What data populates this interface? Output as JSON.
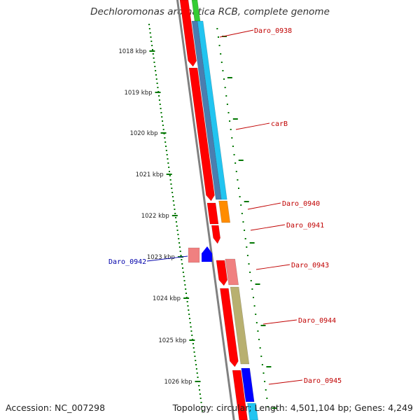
{
  "title": "Dechloromonas aromatica RCB, complete genome",
  "footer": {
    "accession": "Accession: NC_007298",
    "summary": "Topology: circular; Length: 4,501,104 bp; Genes: 4,249"
  },
  "kbp_labels": [
    "1018 kbp",
    "1019 kbp",
    "1020 kbp",
    "1021 kbp",
    "1022 kbp",
    "1023 kbp",
    "1024 kbp",
    "1025 kbp",
    "1026 kbp"
  ],
  "genes": [
    {
      "name": "Daro_0938",
      "color": "#c00000"
    },
    {
      "name": "carB",
      "color": "#c00000"
    },
    {
      "name": "Daro_0940",
      "color": "#c00000"
    },
    {
      "name": "Daro_0941",
      "color": "#c00000"
    },
    {
      "name": "Daro_0942",
      "color": "#0000aa"
    },
    {
      "name": "Daro_0943",
      "color": "#c00000"
    },
    {
      "name": "Daro_0944",
      "color": "#c00000"
    },
    {
      "name": "Daro_0945",
      "color": "#c00000"
    }
  ],
  "colors": {
    "gene_red": "#ff0000",
    "blue_dark": "#4a7eb0",
    "blue_light": "#22c4f0",
    "orange": "#ff8c00",
    "pink": "#f08080",
    "olive": "#b8b070",
    "blue": "#0000ff",
    "green": "#33cc33",
    "gray": "#808080",
    "tick": "#007700"
  }
}
